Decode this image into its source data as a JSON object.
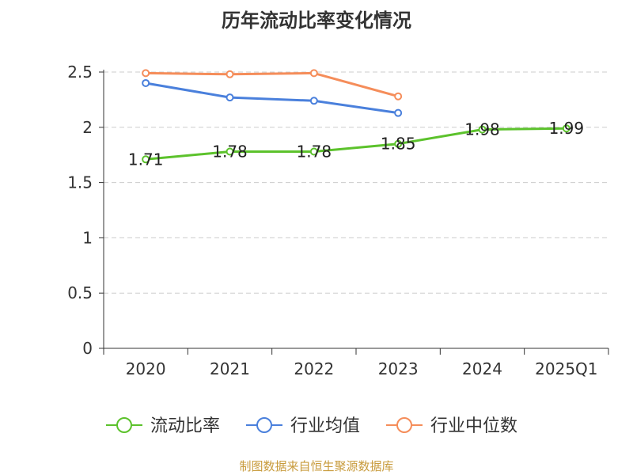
{
  "chart_data": {
    "type": "line",
    "title": "历年流动比率变化情况",
    "categories": [
      "2020",
      "2021",
      "2022",
      "2023",
      "2024",
      "2025Q1"
    ],
    "ylim": [
      0,
      2.5
    ],
    "yticks": [
      "0",
      "0.5",
      "1",
      "1.5",
      "2",
      "2.5"
    ],
    "grid": "horizontal-dashed",
    "legend_position": "bottom",
    "series": [
      {
        "name": "流动比率",
        "color": "#5cc22c",
        "values": [
          1.71,
          1.78,
          1.78,
          1.85,
          1.98,
          1.99
        ],
        "data_labels": [
          "1.71",
          "1.78",
          "1.78",
          "1.85",
          "1.98",
          "1.99"
        ]
      },
      {
        "name": "行业均值",
        "color": "#4a80dc",
        "values": [
          2.4,
          2.27,
          2.24,
          2.13,
          null,
          null
        ]
      },
      {
        "name": "行业中位数",
        "color": "#f58d5a",
        "values": [
          2.49,
          2.48,
          2.49,
          2.28,
          null,
          null
        ]
      }
    ]
  },
  "source_note": "制图数据来自恒生聚源数据库"
}
